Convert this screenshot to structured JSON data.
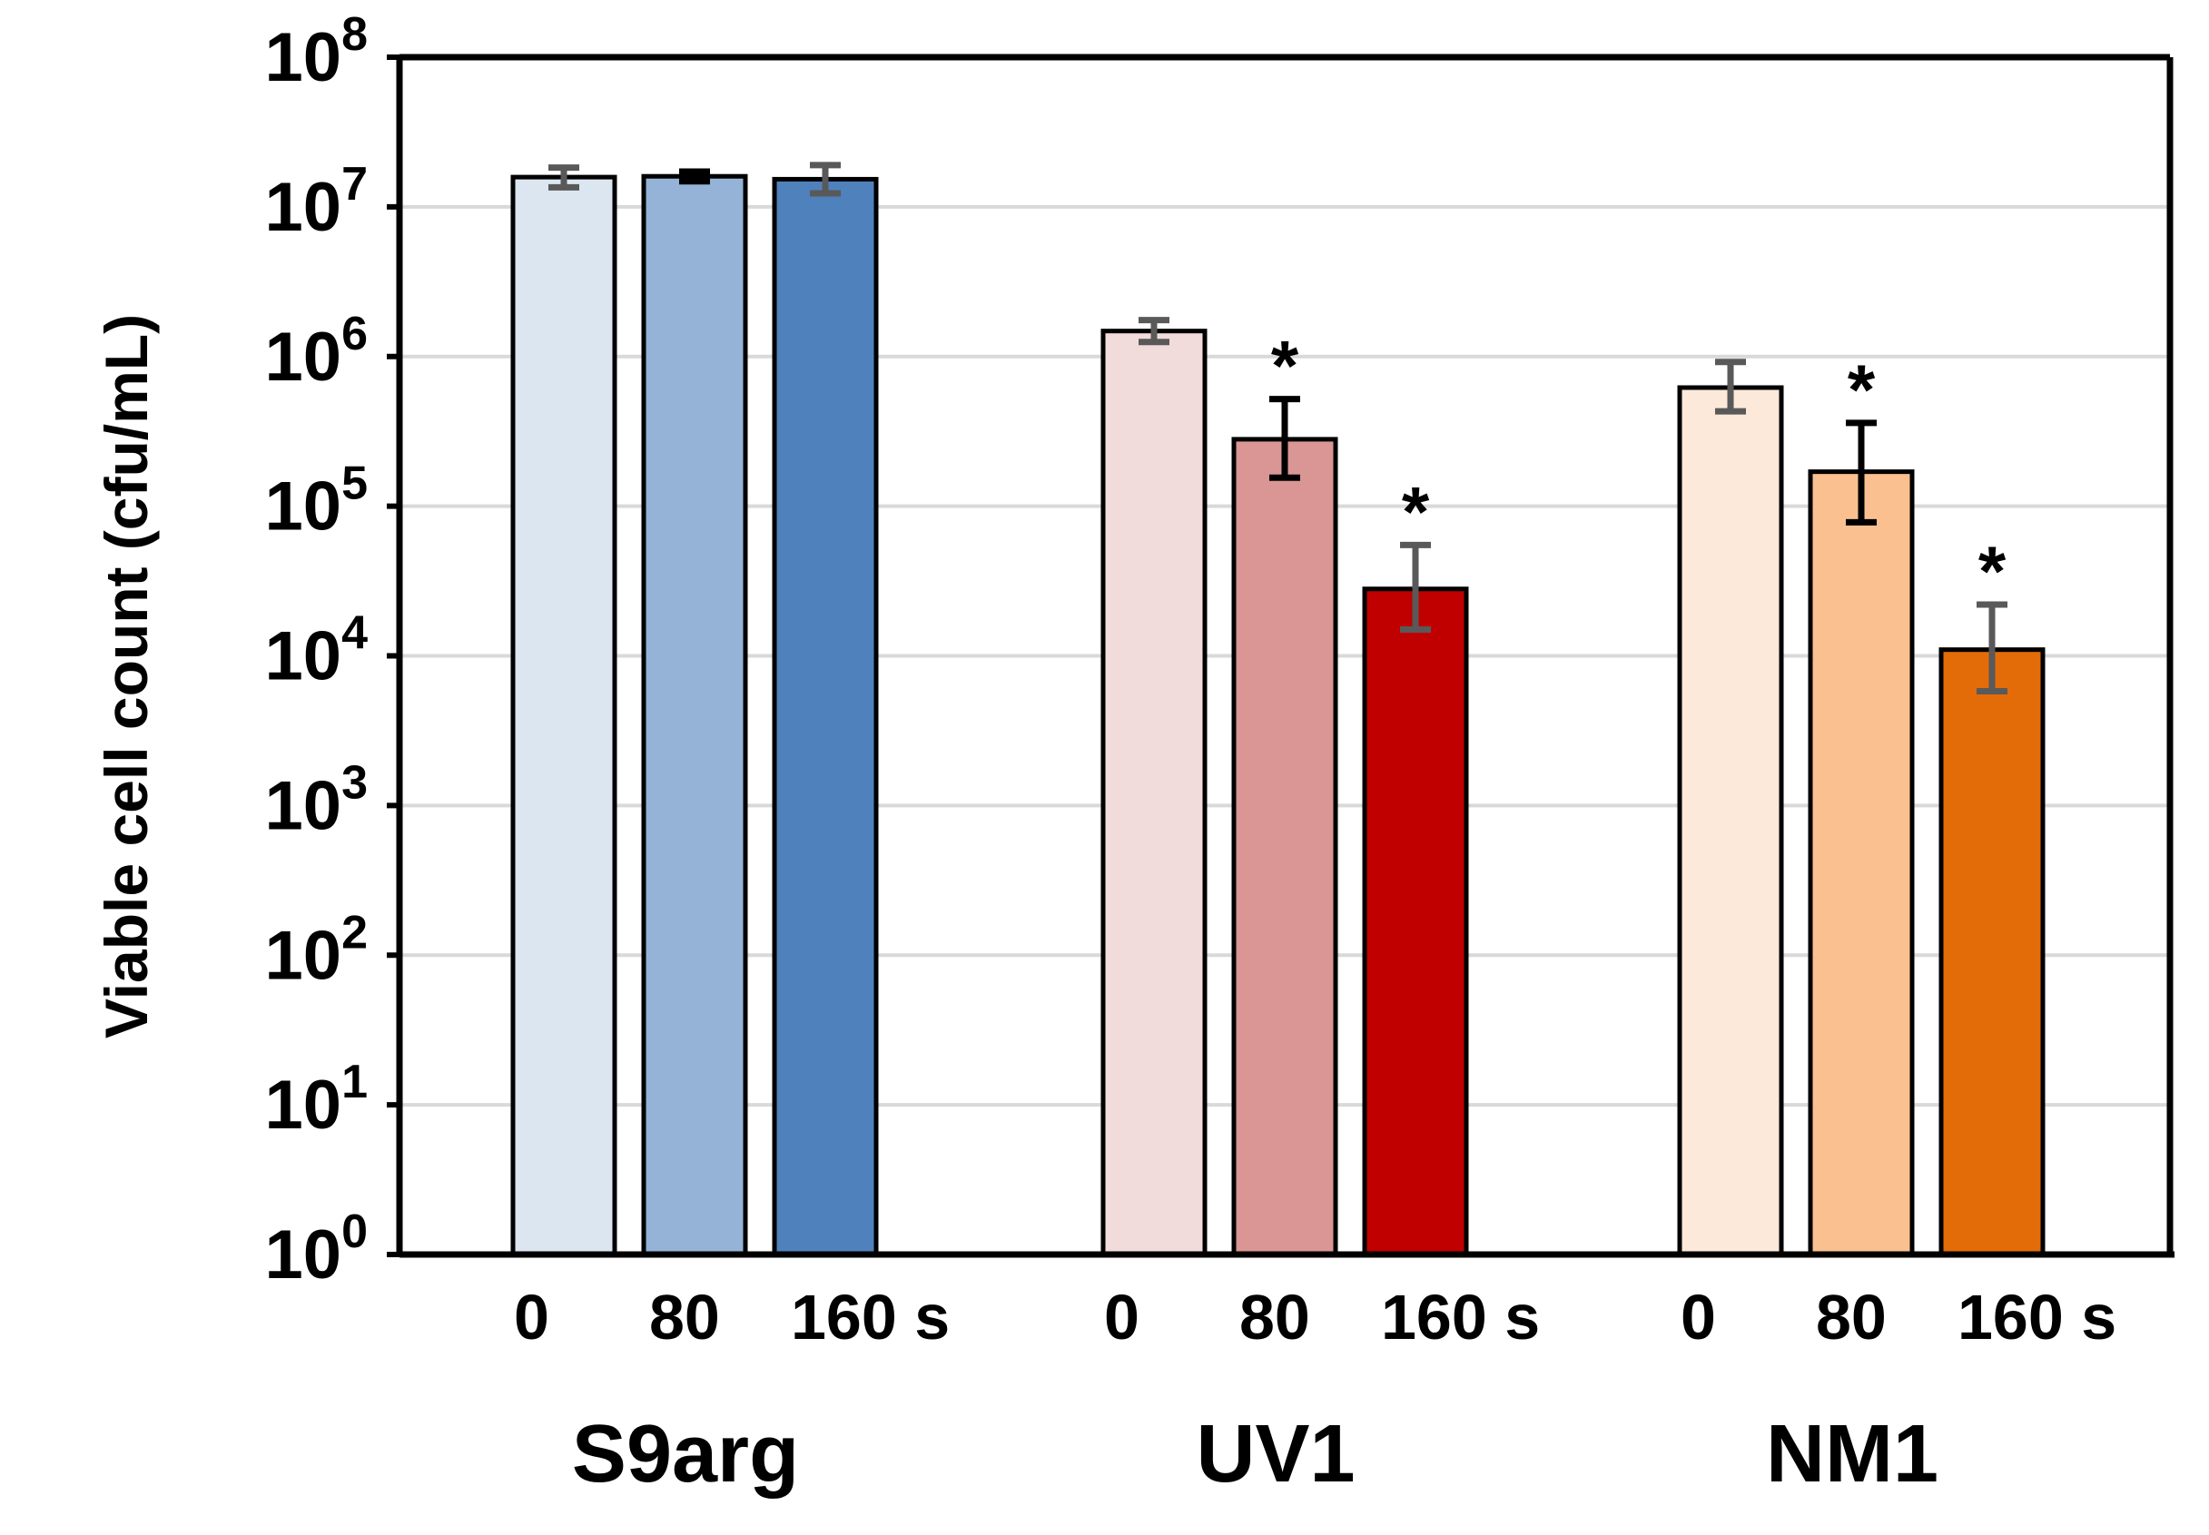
{
  "chart_data": {
    "type": "bar",
    "title": "",
    "ylabel": "Viable cell count (cfu/mL)",
    "yscale": "log",
    "ylim": [
      1,
      100000000
    ],
    "y_ticks": [
      {
        "base": "10",
        "exp": "0"
      },
      {
        "base": "10",
        "exp": "1"
      },
      {
        "base": "10",
        "exp": "2"
      },
      {
        "base": "10",
        "exp": "3"
      },
      {
        "base": "10",
        "exp": "4"
      },
      {
        "base": "10",
        "exp": "5"
      },
      {
        "base": "10",
        "exp": "6"
      },
      {
        "base": "10",
        "exp": "7"
      },
      {
        "base": "10",
        "exp": "8"
      }
    ],
    "grid": true,
    "groups": [
      {
        "name": "S9arg",
        "bars": [
          {
            "label": "0",
            "value": 15800000,
            "err_low": 13500000,
            "err_high": 18300000,
            "color": "#dce6f1",
            "err_color": "#595959",
            "sig": ""
          },
          {
            "label": "80",
            "value": 16000000,
            "err_low": 14800000,
            "err_high": 17200000,
            "color": "#95b3d7",
            "err_color": "#000000",
            "sig": ""
          },
          {
            "label": "160 s",
            "value": 15300000,
            "err_low": 12300000,
            "err_high": 19000000,
            "color": "#4f81bd",
            "err_color": "#595959",
            "sig": ""
          }
        ]
      },
      {
        "name": "UV1",
        "bars": [
          {
            "label": "0",
            "value": 1480000,
            "err_low": 1250000,
            "err_high": 1750000,
            "color": "#f2dcdb",
            "err_color": "#595959",
            "sig": ""
          },
          {
            "label": "80",
            "value": 280000,
            "err_low": 155000,
            "err_high": 520000,
            "color": "#d99694",
            "err_color": "#000000",
            "sig": "*"
          },
          {
            "label": "160 s",
            "value": 28000,
            "err_low": 15000,
            "err_high": 55000,
            "color": "#c00000",
            "err_color": "#595959",
            "sig": "*"
          }
        ]
      },
      {
        "name": "NM1",
        "bars": [
          {
            "label": "0",
            "value": 620000,
            "err_low": 430000,
            "err_high": 920000,
            "color": "#fde9d9",
            "err_color": "#595959",
            "sig": ""
          },
          {
            "label": "80",
            "value": 170000,
            "err_low": 78000,
            "err_high": 360000,
            "color": "#fac090",
            "err_color": "#000000",
            "sig": "*"
          },
          {
            "label": "160 s",
            "value": 11000,
            "err_low": 5800,
            "err_high": 22000,
            "color": "#e36c09",
            "err_color": "#595959",
            "sig": "*"
          }
        ]
      }
    ]
  }
}
